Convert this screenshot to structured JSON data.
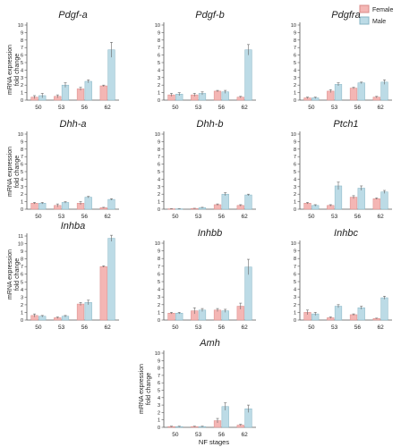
{
  "legend": {
    "items": [
      {
        "label": "Female",
        "color": "#f4b6b4"
      },
      {
        "label": "Male",
        "color": "#bcdbe6"
      }
    ],
    "placement": "top-right"
  },
  "axes": {
    "ylabel_line1": "mRNA expression",
    "ylabel_line2": "fold change",
    "xlabel": "NF stages"
  },
  "colors": {
    "female_fill": "#f4b6b4",
    "female_edge": "#d98b89",
    "male_fill": "#bcdbe6",
    "male_edge": "#86b4c4",
    "axis": "#555555"
  },
  "chart_data": [
    {
      "type": "bar",
      "title": "Pdgf-a",
      "categories": [
        "50",
        "53",
        "56",
        "62"
      ],
      "ylim": [
        0,
        10
      ],
      "yticks": [
        0,
        1,
        2,
        3,
        4,
        5,
        6,
        7,
        8,
        9,
        10
      ],
      "series": [
        {
          "name": "Female",
          "values": [
            0.4,
            0.5,
            1.5,
            1.9
          ],
          "errors": [
            0.2,
            0.2,
            0.2,
            0.1
          ]
        },
        {
          "name": "Male",
          "values": [
            0.6,
            2.0,
            2.5,
            6.7
          ],
          "errors": [
            0.3,
            0.3,
            0.2,
            1.0
          ]
        }
      ]
    },
    {
      "type": "bar",
      "title": "Pdgf-b",
      "categories": [
        "50",
        "53",
        "56",
        "62"
      ],
      "ylim": [
        0,
        10
      ],
      "yticks": [
        0,
        1,
        2,
        3,
        4,
        5,
        6,
        7,
        8,
        9,
        10
      ],
      "series": [
        {
          "name": "Female",
          "values": [
            0.7,
            0.7,
            1.2,
            0.4
          ],
          "errors": [
            0.2,
            0.2,
            0.1,
            0.1
          ]
        },
        {
          "name": "Male",
          "values": [
            0.8,
            0.9,
            1.1,
            6.7
          ],
          "errors": [
            0.2,
            0.2,
            0.2,
            0.7
          ]
        }
      ]
    },
    {
      "type": "bar",
      "title": "Pdgfra",
      "categories": [
        "50",
        "53",
        "56",
        "62"
      ],
      "ylim": [
        0,
        10
      ],
      "yticks": [
        0,
        1,
        2,
        3,
        4,
        5,
        6,
        7,
        8,
        9,
        10
      ],
      "series": [
        {
          "name": "Female",
          "values": [
            0.3,
            1.2,
            1.6,
            0.4
          ],
          "errors": [
            0.1,
            0.2,
            0.1,
            0.1
          ]
        },
        {
          "name": "Male",
          "values": [
            0.3,
            2.1,
            2.3,
            2.4
          ],
          "errors": [
            0.1,
            0.2,
            0.1,
            0.3
          ]
        }
      ]
    },
    {
      "type": "bar",
      "title": "Dhh-a",
      "categories": [
        "50",
        "53",
        "56",
        "62"
      ],
      "ylim": [
        0,
        10
      ],
      "yticks": [
        0,
        1,
        2,
        3,
        4,
        5,
        6,
        7,
        8,
        9,
        10
      ],
      "series": [
        {
          "name": "Female",
          "values": [
            0.8,
            0.5,
            0.8,
            0.2
          ],
          "errors": [
            0.1,
            0.2,
            0.2,
            0.05
          ]
        },
        {
          "name": "Male",
          "values": [
            0.8,
            0.9,
            1.6,
            1.3
          ],
          "errors": [
            0.1,
            0.1,
            0.1,
            0.1
          ]
        }
      ]
    },
    {
      "type": "bar",
      "title": "Dhh-b",
      "categories": [
        "50",
        "53",
        "56",
        "62"
      ],
      "ylim": [
        0,
        10
      ],
      "yticks": [
        0,
        1,
        2,
        3,
        4,
        5,
        6,
        7,
        8,
        9,
        10
      ],
      "series": [
        {
          "name": "Female",
          "values": [
            0.05,
            0.1,
            0.6,
            0.5
          ],
          "errors": [
            0.02,
            0.02,
            0.1,
            0.1
          ]
        },
        {
          "name": "Male",
          "values": [
            0.05,
            0.2,
            2.0,
            1.9
          ],
          "errors": [
            0.02,
            0.05,
            0.2,
            0.1
          ]
        }
      ]
    },
    {
      "type": "bar",
      "title": "Ptch1",
      "categories": [
        "50",
        "53",
        "56",
        "62"
      ],
      "ylim": [
        0,
        10
      ],
      "yticks": [
        0,
        1,
        2,
        3,
        4,
        5,
        6,
        7,
        8,
        9,
        10
      ],
      "series": [
        {
          "name": "Female",
          "values": [
            0.8,
            0.5,
            1.6,
            1.4
          ],
          "errors": [
            0.1,
            0.1,
            0.2,
            0.1
          ]
        },
        {
          "name": "Male",
          "values": [
            0.5,
            3.1,
            2.8,
            2.3
          ],
          "errors": [
            0.1,
            0.5,
            0.3,
            0.2
          ]
        }
      ]
    },
    {
      "type": "bar",
      "title": "Inhba",
      "categories": [
        "50",
        "53",
        "56",
        "62"
      ],
      "ylim": [
        0,
        11
      ],
      "yticks": [
        0,
        1,
        2,
        3,
        4,
        5,
        6,
        7,
        8,
        9,
        10,
        11
      ],
      "series": [
        {
          "name": "Female",
          "values": [
            0.6,
            0.3,
            2.1,
            7.0
          ],
          "errors": [
            0.2,
            0.1,
            0.2,
            0.1
          ]
        },
        {
          "name": "Male",
          "values": [
            0.5,
            0.5,
            2.3,
            10.7
          ],
          "errors": [
            0.1,
            0.1,
            0.3,
            0.4
          ]
        }
      ]
    },
    {
      "type": "bar",
      "title": "Inhbb",
      "categories": [
        "50",
        "53",
        "56",
        "62"
      ],
      "ylim": [
        0,
        10
      ],
      "yticks": [
        0,
        1,
        2,
        3,
        4,
        5,
        6,
        7,
        8,
        9,
        10
      ],
      "series": [
        {
          "name": "Female",
          "values": [
            0.9,
            1.2,
            1.3,
            1.8
          ],
          "errors": [
            0.1,
            0.4,
            0.2,
            0.4
          ]
        },
        {
          "name": "Male",
          "values": [
            0.9,
            1.3,
            1.2,
            6.9
          ],
          "errors": [
            0.1,
            0.2,
            0.2,
            1.0
          ]
        }
      ]
    },
    {
      "type": "bar",
      "title": "Inhbc",
      "categories": [
        "50",
        "53",
        "56",
        "62"
      ],
      "ylim": [
        0,
        10
      ],
      "yticks": [
        0,
        1,
        2,
        3,
        4,
        5,
        6,
        7,
        8,
        9,
        10
      ],
      "series": [
        {
          "name": "Female",
          "values": [
            1.0,
            0.3,
            0.7,
            0.2
          ],
          "errors": [
            0.3,
            0.1,
            0.1,
            0.05
          ]
        },
        {
          "name": "Male",
          "values": [
            0.8,
            1.8,
            1.6,
            2.9
          ],
          "errors": [
            0.2,
            0.2,
            0.2,
            0.2
          ]
        }
      ]
    },
    {
      "type": "bar",
      "title": "Amh",
      "categories": [
        "50",
        "53",
        "56",
        "62"
      ],
      "ylim": [
        0,
        10
      ],
      "yticks": [
        0,
        1,
        2,
        3,
        4,
        5,
        6,
        7,
        8,
        9,
        10
      ],
      "series": [
        {
          "name": "Female",
          "values": [
            0.1,
            0.1,
            0.9,
            0.3
          ],
          "errors": [
            0.05,
            0.05,
            0.3,
            0.1
          ]
        },
        {
          "name": "Male",
          "values": [
            0.1,
            0.1,
            2.8,
            2.5
          ],
          "errors": [
            0.05,
            0.05,
            0.5,
            0.5
          ]
        }
      ]
    }
  ]
}
